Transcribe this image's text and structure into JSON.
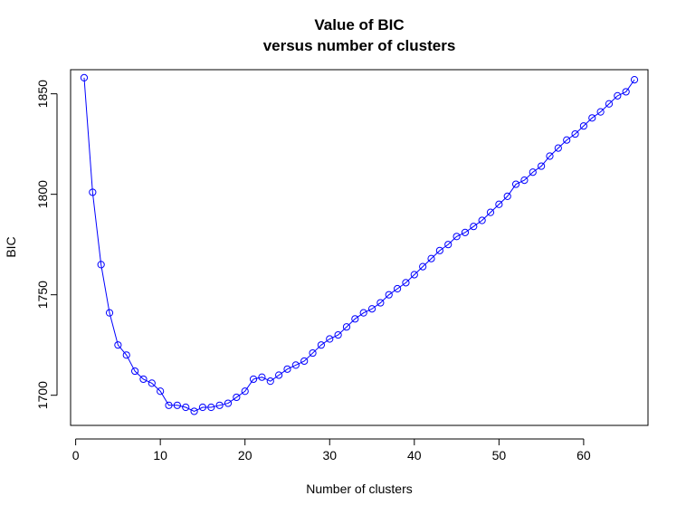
{
  "chart_data": {
    "type": "line",
    "title": "Value of BIC",
    "subtitle": "versus number of clusters",
    "xlabel": "Number of clusters",
    "ylabel": "BIC",
    "xlim": [
      -0.6,
      67.6
    ],
    "ylim": [
      1685,
      1862
    ],
    "x_ticks": [
      0,
      10,
      20,
      30,
      40,
      50,
      60
    ],
    "y_ticks": [
      1700,
      1750,
      1800,
      1850
    ],
    "grid": false,
    "legend": "none",
    "color": "#0000ff",
    "marker": "open-circle",
    "series": [
      {
        "x": [
          1,
          2,
          3,
          4,
          5,
          6,
          7,
          8,
          9,
          10,
          11,
          12,
          13,
          14,
          15,
          16,
          17,
          18,
          19,
          20,
          21,
          22,
          23,
          24,
          25,
          26,
          27,
          28,
          29,
          30,
          31,
          32,
          33,
          34,
          35,
          36,
          37,
          38,
          39,
          40,
          41,
          42,
          43,
          44,
          45,
          46,
          47,
          48,
          49,
          50,
          51,
          52,
          53,
          54,
          55,
          56,
          57,
          58,
          59,
          60,
          61,
          62,
          63,
          64,
          65,
          66
        ],
        "values": [
          1858,
          1801,
          1765,
          1741,
          1725,
          1720,
          1712,
          1708,
          1706,
          1702,
          1695,
          1695,
          1694,
          1692,
          1694,
          1694,
          1695,
          1696,
          1699,
          1702,
          1708,
          1709,
          1707,
          1710,
          1713,
          1715,
          1717,
          1721,
          1725,
          1728,
          1730,
          1734,
          1738,
          1741,
          1743,
          1746,
          1750,
          1753,
          1756,
          1760,
          1764,
          1768,
          1772,
          1775,
          1779,
          1781,
          1784,
          1787,
          1791,
          1795,
          1799,
          1805,
          1807,
          1811,
          1814,
          1819,
          1823,
          1827,
          1830,
          1834,
          1838,
          1841,
          1845,
          1849,
          1851,
          1857
        ]
      }
    ]
  }
}
